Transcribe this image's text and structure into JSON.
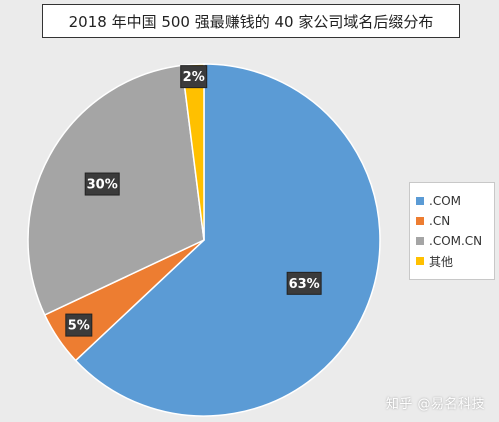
{
  "chart_data": {
    "type": "pie",
    "title": "2018 年中国 500 强最赚钱的 40 家公司域名后缀分布",
    "categories": [
      ".COM",
      ".CN",
      ".COM.CN",
      "其他"
    ],
    "values": [
      63,
      5,
      30,
      2
    ],
    "data_labels": [
      "63%",
      "5%",
      "30%",
      "2%"
    ],
    "colors": [
      "#5b9bd5",
      "#ed7d31",
      "#a5a5a5",
      "#ffc000"
    ],
    "legend_position": "right"
  },
  "watermark": "知乎 @易名科技"
}
